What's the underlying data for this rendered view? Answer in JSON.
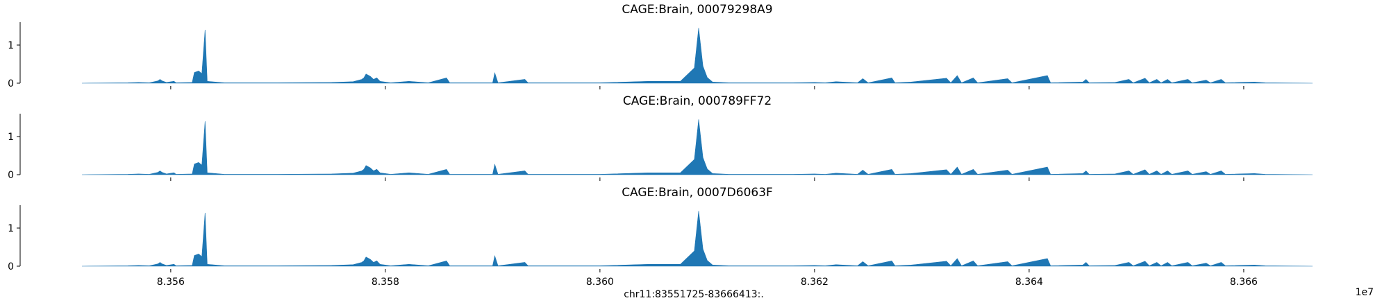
{
  "chart_data": {
    "type": "area",
    "xlabel": "chr11:83551725-83666413:.",
    "x_offset_label": "1e7",
    "x_range": [
      83551725,
      83666413
    ],
    "x_ticks": [
      83560000,
      83580000,
      83600000,
      83620000,
      83640000,
      83660000
    ],
    "x_tick_labels": [
      "8.356",
      "8.358",
      "8.360",
      "8.362",
      "8.364",
      "8.366"
    ],
    "y_range": [
      0,
      1.6
    ],
    "y_ticks": [
      0,
      1
    ],
    "y_tick_labels": [
      "0",
      "1"
    ],
    "color": "#1f77b4",
    "grid": false,
    "tracks": [
      {
        "title": "CAGE:Brain, 00079298A9",
        "points": [
          [
            83551725,
            0
          ],
          [
            83556000,
            0.01
          ],
          [
            83557000,
            0.02
          ],
          [
            83558000,
            0.01
          ],
          [
            83558800,
            0.06
          ],
          [
            83559000,
            0.1
          ],
          [
            83559200,
            0.06
          ],
          [
            83559600,
            0.02
          ],
          [
            83560300,
            0.05
          ],
          [
            83560500,
            0.01
          ],
          [
            83562000,
            0.02
          ],
          [
            83562200,
            0.28
          ],
          [
            83562600,
            0.32
          ],
          [
            83562900,
            0.25
          ],
          [
            83563200,
            1.4
          ],
          [
            83563400,
            0.05
          ],
          [
            83565000,
            0.01
          ],
          [
            83570000,
            0.01
          ],
          [
            83575000,
            0.02
          ],
          [
            83577000,
            0.04
          ],
          [
            83577800,
            0.1
          ],
          [
            83578000,
            0.14
          ],
          [
            83578200,
            0.24
          ],
          [
            83578600,
            0.18
          ],
          [
            83578900,
            0.1
          ],
          [
            83579200,
            0.14
          ],
          [
            83579500,
            0.05
          ],
          [
            83580500,
            0.01
          ],
          [
            83582200,
            0.05
          ],
          [
            83584000,
            0.01
          ],
          [
            83585700,
            0.14
          ],
          [
            83586000,
            0.01
          ],
          [
            83590000,
            0.01
          ],
          [
            83590200,
            0.27
          ],
          [
            83590500,
            0.01
          ],
          [
            83593000,
            0.1
          ],
          [
            83593300,
            0.01
          ],
          [
            83595000,
            0.01
          ],
          [
            83600000,
            0.01
          ],
          [
            83604500,
            0.05
          ],
          [
            83607500,
            0.05
          ],
          [
            83608800,
            0.4
          ],
          [
            83609200,
            1.45
          ],
          [
            83609600,
            0.45
          ],
          [
            83610000,
            0.15
          ],
          [
            83610500,
            0.03
          ],
          [
            83612000,
            0.01
          ],
          [
            83618000,
            0.01
          ],
          [
            83620000,
            0.02
          ],
          [
            83621000,
            0.01
          ],
          [
            83622000,
            0.04
          ],
          [
            83624000,
            0.01
          ],
          [
            83624500,
            0.12
          ],
          [
            83625000,
            0.01
          ],
          [
            83627200,
            0.14
          ],
          [
            83627500,
            0.01
          ],
          [
            83629000,
            0.03
          ],
          [
            83632300,
            0.13
          ],
          [
            83632700,
            0.01
          ],
          [
            83633300,
            0.2
          ],
          [
            83633700,
            0.01
          ],
          [
            83634800,
            0.14
          ],
          [
            83635200,
            0.01
          ],
          [
            83638000,
            0.12
          ],
          [
            83638400,
            0.01
          ],
          [
            83641700,
            0.2
          ],
          [
            83642000,
            0.01
          ],
          [
            83645000,
            0.03
          ],
          [
            83645300,
            0.1
          ],
          [
            83645600,
            0.01
          ],
          [
            83648000,
            0.02
          ],
          [
            83649300,
            0.1
          ],
          [
            83649700,
            0.01
          ],
          [
            83650800,
            0.13
          ],
          [
            83651200,
            0.01
          ],
          [
            83651900,
            0.1
          ],
          [
            83652300,
            0.01
          ],
          [
            83652900,
            0.1
          ],
          [
            83653300,
            0.01
          ],
          [
            83654800,
            0.1
          ],
          [
            83655200,
            0.01
          ],
          [
            83656500,
            0.08
          ],
          [
            83656900,
            0.01
          ],
          [
            83657900,
            0.1
          ],
          [
            83658300,
            0.01
          ],
          [
            83661000,
            0.03
          ],
          [
            83662000,
            0.01
          ],
          [
            83666413,
            0
          ]
        ]
      },
      {
        "title": "CAGE:Brain, 000789FF72",
        "points": [
          [
            83551725,
            0
          ],
          [
            83556000,
            0.01
          ],
          [
            83557000,
            0.02
          ],
          [
            83558000,
            0.01
          ],
          [
            83558800,
            0.06
          ],
          [
            83559000,
            0.1
          ],
          [
            83559200,
            0.06
          ],
          [
            83559600,
            0.02
          ],
          [
            83560300,
            0.05
          ],
          [
            83560500,
            0.01
          ],
          [
            83562000,
            0.02
          ],
          [
            83562200,
            0.28
          ],
          [
            83562600,
            0.32
          ],
          [
            83562900,
            0.25
          ],
          [
            83563200,
            1.4
          ],
          [
            83563400,
            0.05
          ],
          [
            83565000,
            0.01
          ],
          [
            83570000,
            0.01
          ],
          [
            83575000,
            0.02
          ],
          [
            83577000,
            0.04
          ],
          [
            83577800,
            0.1
          ],
          [
            83578000,
            0.14
          ],
          [
            83578200,
            0.24
          ],
          [
            83578600,
            0.18
          ],
          [
            83578900,
            0.1
          ],
          [
            83579200,
            0.14
          ],
          [
            83579500,
            0.05
          ],
          [
            83580500,
            0.01
          ],
          [
            83582200,
            0.05
          ],
          [
            83584000,
            0.01
          ],
          [
            83585700,
            0.14
          ],
          [
            83586000,
            0.01
          ],
          [
            83590000,
            0.01
          ],
          [
            83590200,
            0.27
          ],
          [
            83590500,
            0.01
          ],
          [
            83593000,
            0.1
          ],
          [
            83593300,
            0.01
          ],
          [
            83595000,
            0.01
          ],
          [
            83600000,
            0.01
          ],
          [
            83604500,
            0.05
          ],
          [
            83607500,
            0.05
          ],
          [
            83608800,
            0.4
          ],
          [
            83609200,
            1.45
          ],
          [
            83609600,
            0.45
          ],
          [
            83610000,
            0.15
          ],
          [
            83610500,
            0.03
          ],
          [
            83612000,
            0.01
          ],
          [
            83618000,
            0.01
          ],
          [
            83620000,
            0.02
          ],
          [
            83621000,
            0.01
          ],
          [
            83622000,
            0.04
          ],
          [
            83624000,
            0.01
          ],
          [
            83624500,
            0.12
          ],
          [
            83625000,
            0.01
          ],
          [
            83627200,
            0.14
          ],
          [
            83627500,
            0.01
          ],
          [
            83629000,
            0.03
          ],
          [
            83632300,
            0.13
          ],
          [
            83632700,
            0.01
          ],
          [
            83633300,
            0.2
          ],
          [
            83633700,
            0.01
          ],
          [
            83634800,
            0.14
          ],
          [
            83635200,
            0.01
          ],
          [
            83638000,
            0.12
          ],
          [
            83638400,
            0.01
          ],
          [
            83641700,
            0.2
          ],
          [
            83642000,
            0.01
          ],
          [
            83645000,
            0.03
          ],
          [
            83645300,
            0.1
          ],
          [
            83645600,
            0.01
          ],
          [
            83648000,
            0.02
          ],
          [
            83649300,
            0.1
          ],
          [
            83649700,
            0.01
          ],
          [
            83650800,
            0.13
          ],
          [
            83651200,
            0.01
          ],
          [
            83651900,
            0.1
          ],
          [
            83652300,
            0.01
          ],
          [
            83652900,
            0.1
          ],
          [
            83653300,
            0.01
          ],
          [
            83654800,
            0.1
          ],
          [
            83655200,
            0.01
          ],
          [
            83656500,
            0.08
          ],
          [
            83656900,
            0.01
          ],
          [
            83657900,
            0.1
          ],
          [
            83658300,
            0.01
          ],
          [
            83661000,
            0.03
          ],
          [
            83662000,
            0.01
          ],
          [
            83666413,
            0
          ]
        ]
      },
      {
        "title": "CAGE:Brain, 0007D6063F",
        "points": [
          [
            83551725,
            0
          ],
          [
            83556000,
            0.01
          ],
          [
            83557000,
            0.02
          ],
          [
            83558000,
            0.01
          ],
          [
            83558800,
            0.06
          ],
          [
            83559000,
            0.1
          ],
          [
            83559200,
            0.06
          ],
          [
            83559600,
            0.02
          ],
          [
            83560300,
            0.05
          ],
          [
            83560500,
            0.01
          ],
          [
            83562000,
            0.02
          ],
          [
            83562200,
            0.28
          ],
          [
            83562600,
            0.32
          ],
          [
            83562900,
            0.25
          ],
          [
            83563200,
            1.4
          ],
          [
            83563400,
            0.05
          ],
          [
            83565000,
            0.01
          ],
          [
            83570000,
            0.01
          ],
          [
            83575000,
            0.02
          ],
          [
            83577000,
            0.04
          ],
          [
            83577800,
            0.1
          ],
          [
            83578000,
            0.14
          ],
          [
            83578200,
            0.24
          ],
          [
            83578600,
            0.18
          ],
          [
            83578900,
            0.1
          ],
          [
            83579200,
            0.14
          ],
          [
            83579500,
            0.05
          ],
          [
            83580500,
            0.01
          ],
          [
            83582200,
            0.05
          ],
          [
            83584000,
            0.01
          ],
          [
            83585700,
            0.14
          ],
          [
            83586000,
            0.01
          ],
          [
            83590000,
            0.01
          ],
          [
            83590200,
            0.27
          ],
          [
            83590500,
            0.01
          ],
          [
            83593000,
            0.1
          ],
          [
            83593300,
            0.01
          ],
          [
            83595000,
            0.01
          ],
          [
            83600000,
            0.01
          ],
          [
            83604500,
            0.05
          ],
          [
            83607500,
            0.05
          ],
          [
            83608800,
            0.4
          ],
          [
            83609200,
            1.45
          ],
          [
            83609600,
            0.45
          ],
          [
            83610000,
            0.15
          ],
          [
            83610500,
            0.03
          ],
          [
            83612000,
            0.01
          ],
          [
            83618000,
            0.01
          ],
          [
            83620000,
            0.02
          ],
          [
            83621000,
            0.01
          ],
          [
            83622000,
            0.04
          ],
          [
            83624000,
            0.01
          ],
          [
            83624500,
            0.12
          ],
          [
            83625000,
            0.01
          ],
          [
            83627200,
            0.14
          ],
          [
            83627500,
            0.01
          ],
          [
            83629000,
            0.03
          ],
          [
            83632300,
            0.13
          ],
          [
            83632700,
            0.01
          ],
          [
            83633300,
            0.2
          ],
          [
            83633700,
            0.01
          ],
          [
            83634800,
            0.14
          ],
          [
            83635200,
            0.01
          ],
          [
            83638000,
            0.12
          ],
          [
            83638400,
            0.01
          ],
          [
            83641700,
            0.2
          ],
          [
            83642000,
            0.01
          ],
          [
            83645000,
            0.03
          ],
          [
            83645300,
            0.1
          ],
          [
            83645600,
            0.01
          ],
          [
            83648000,
            0.02
          ],
          [
            83649300,
            0.1
          ],
          [
            83649700,
            0.01
          ],
          [
            83650800,
            0.13
          ],
          [
            83651200,
            0.01
          ],
          [
            83651900,
            0.1
          ],
          [
            83652300,
            0.01
          ],
          [
            83652900,
            0.1
          ],
          [
            83653300,
            0.01
          ],
          [
            83654800,
            0.1
          ],
          [
            83655200,
            0.01
          ],
          [
            83656500,
            0.08
          ],
          [
            83656900,
            0.01
          ],
          [
            83657900,
            0.1
          ],
          [
            83658300,
            0.01
          ],
          [
            83661000,
            0.03
          ],
          [
            83662000,
            0.01
          ],
          [
            83666413,
            0
          ]
        ]
      }
    ]
  }
}
